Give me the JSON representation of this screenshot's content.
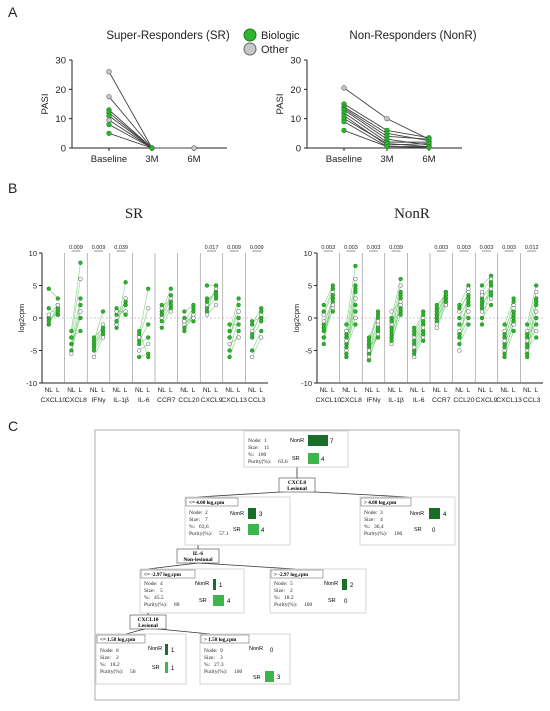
{
  "panels": {
    "a": "A",
    "b": "B",
    "c": "C"
  },
  "colors": {
    "biologic": "#2db52d",
    "biologic_dark": "#1e7a1e",
    "other": "#c8c8c8",
    "tree_dark": "#1b6e2a",
    "tree_light": "#3cb54a",
    "line": "#333333"
  },
  "legend": {
    "biologic": "Biologic",
    "other": "Other"
  },
  "chart_data": [
    {
      "type": "line",
      "title": "Super-Responders (SR)",
      "ylabel": "PASI",
      "categories": [
        "Baseline",
        "3M",
        "6M"
      ],
      "ylim": [
        0,
        30
      ],
      "yticks": [
        0,
        10,
        20,
        30
      ],
      "series": [
        {
          "group": "Other",
          "values": [
            26,
            0,
            0
          ]
        },
        {
          "group": "Other",
          "values": [
            17.5,
            0,
            null
          ]
        },
        {
          "group": "Biologic",
          "values": [
            13,
            0,
            null
          ]
        },
        {
          "group": "Biologic",
          "values": [
            12,
            0,
            null
          ]
        },
        {
          "group": "Biologic",
          "values": [
            11,
            0,
            null
          ]
        },
        {
          "group": "Other",
          "values": [
            9.5,
            0,
            null
          ]
        },
        {
          "group": "Biologic",
          "values": [
            8,
            0,
            null
          ]
        },
        {
          "group": "Biologic",
          "values": [
            5,
            0,
            null
          ]
        }
      ]
    },
    {
      "type": "line",
      "title": "Non-Responders (NonR)",
      "ylabel": "PASI",
      "categories": [
        "Baseline",
        "3M",
        "6M"
      ],
      "ylim": [
        0,
        30
      ],
      "yticks": [
        0,
        10,
        20,
        30
      ],
      "series": [
        {
          "group": "Other",
          "values": [
            20.5,
            10,
            3
          ]
        },
        {
          "group": "Biologic",
          "values": [
            15,
            6,
            3.5
          ]
        },
        {
          "group": "Biologic",
          "values": [
            14,
            5,
            2.5
          ]
        },
        {
          "group": "Biologic",
          "values": [
            13.5,
            4,
            3
          ]
        },
        {
          "group": "Biologic",
          "values": [
            13,
            3,
            1
          ]
        },
        {
          "group": "Biologic",
          "values": [
            12,
            2,
            2
          ]
        },
        {
          "group": "Biologic",
          "values": [
            11,
            1,
            1.5
          ]
        },
        {
          "group": "Biologic",
          "values": [
            10,
            1.5,
            0.5
          ]
        },
        {
          "group": "Biologic",
          "values": [
            9,
            0.5,
            0.5
          ]
        },
        {
          "group": "Biologic",
          "values": [
            6,
            0.5,
            0.2
          ]
        }
      ]
    },
    {
      "type": "scatter",
      "title": "SR",
      "ylabel": "log2cpm",
      "ylim": [
        -10,
        10
      ],
      "yticks": [
        -10,
        -5,
        0,
        5,
        10
      ],
      "subcategories": [
        "NL",
        "L"
      ],
      "genes": [
        "CXCL10",
        "CXCL8",
        "IFNγ",
        "IL-1β",
        "IL-6",
        "CCR7",
        "CCL20",
        "CXCL9",
        "CXCL13",
        "CCL3"
      ],
      "pvalues": [
        "",
        "0.009",
        "0.009",
        "0.039",
        "",
        "",
        "",
        "0.017",
        "0.009",
        "0.009"
      ],
      "groups": [
        {
          "NL": [
            4.5,
            -1,
            -1,
            0,
            0.5,
            1.5,
            -0.5
          ],
          "L": [
            3,
            2,
            1.5,
            0.5,
            2,
            0.5,
            1
          ]
        },
        {
          "NL": [
            -2,
            -3,
            -4,
            -5,
            -5.5,
            -4,
            -3
          ],
          "L": [
            8.5,
            6,
            3,
            2,
            1,
            0,
            -2
          ]
        },
        {
          "NL": [
            -3.5,
            -4,
            -4.5,
            -5,
            -6,
            -3,
            -4
          ],
          "L": [
            1,
            -1,
            -2,
            -2.5,
            -3,
            -1.5,
            -2
          ]
        },
        {
          "NL": [
            -1.5,
            -1,
            0.5,
            -0.5,
            1,
            1.5,
            -0.5
          ],
          "L": [
            5.5,
            3,
            2.5,
            2,
            1,
            0.5,
            2
          ]
        },
        {
          "NL": [
            -2.5,
            -3,
            -3.5,
            -4,
            -5,
            -6,
            -2
          ],
          "L": [
            4.5,
            1.5,
            -1,
            -3,
            -4,
            -5.5,
            -6
          ]
        },
        {
          "NL": [
            1,
            0,
            -0.5,
            -1.5,
            1.5,
            0.5,
            2
          ],
          "L": [
            4.5,
            3,
            2,
            1.5,
            1,
            3.5,
            2.5
          ]
        },
        {
          "NL": [
            -0.5,
            -1,
            -1.5,
            0,
            -0.5,
            -2,
            1
          ],
          "L": [
            1.5,
            0.5,
            0,
            -0.5,
            0,
            1,
            2
          ]
        },
        {
          "NL": [
            1,
            2,
            3,
            1.5,
            0.5,
            2.5,
            5
          ],
          "L": [
            5,
            4.5,
            3.5,
            3,
            2,
            4,
            5
          ]
        },
        {
          "NL": [
            -2,
            -3,
            -5,
            -6,
            -4,
            -1,
            -3
          ],
          "L": [
            3,
            1,
            0,
            -2,
            -3,
            -1,
            2
          ]
        },
        {
          "NL": [
            -1,
            -2,
            -3,
            -5,
            -6,
            -0.5,
            -2.5
          ],
          "L": [
            1.5,
            0.5,
            -0.5,
            -2,
            -3,
            0,
            1
          ]
        }
      ]
    },
    {
      "type": "scatter",
      "title": "NonR",
      "ylabel": "log2cpm",
      "ylim": [
        -10,
        10
      ],
      "yticks": [
        -10,
        -5,
        0,
        5,
        10
      ],
      "subcategories": [
        "NL",
        "L"
      ],
      "genes": [
        "CXCL10",
        "CXCL8",
        "IFNγ",
        "IL-1β",
        "IL-6",
        "CCR7",
        "CCL20",
        "CXCL9",
        "CXCL13",
        "CCL3"
      ],
      "pvalues": [
        "0.003",
        "0.003",
        "0.003",
        "0.039",
        "",
        "0.003",
        "0.003",
        "0.003",
        "0.003",
        "0.012"
      ],
      "groups": [
        {
          "NL": [
            2,
            0.5,
            -1,
            -2,
            -3,
            -4,
            1,
            -0.5,
            -1.5,
            -3
          ],
          "L": [
            5,
            4,
            3,
            2.5,
            1.5,
            3.5,
            4.5,
            2,
            1,
            3
          ]
        },
        {
          "NL": [
            -1,
            -2,
            -3,
            -4,
            -5,
            -6,
            -2.5,
            -3.5,
            -4.5,
            -5.5
          ],
          "L": [
            8,
            6,
            5,
            4,
            3,
            2,
            1,
            0,
            -1,
            4.5
          ]
        },
        {
          "NL": [
            -3,
            -4,
            -5,
            -5.5,
            -6,
            -4.5,
            -3.5,
            -5,
            -4,
            -6.5
          ],
          "L": [
            0,
            -1,
            -1.5,
            -2,
            -2.5,
            -3,
            1,
            -0.5,
            0.5,
            -2
          ]
        },
        {
          "NL": [
            0,
            -1,
            -2,
            -3,
            -4,
            -0.5,
            -1.5,
            1,
            -2.5,
            -3.5
          ],
          "L": [
            6,
            5,
            4,
            3,
            2,
            1,
            3.5,
            2.5,
            1.5,
            0.5
          ]
        },
        {
          "NL": [
            -2,
            -3,
            -4,
            -5,
            -6,
            -2.5,
            -3.5,
            -4.5,
            -5.5,
            -1.5
          ],
          "L": [
            1,
            0,
            -1,
            -2,
            -3,
            0.5,
            -0.5,
            -1.5,
            -2.5,
            -3.5
          ]
        },
        {
          "NL": [
            1.5,
            0.5,
            0,
            -0.5,
            -1,
            1,
            0.5,
            -1.5,
            2,
            0
          ],
          "L": [
            4,
            3.5,
            3,
            2.5,
            2,
            3,
            4,
            2,
            3.5,
            2.5
          ]
        },
        {
          "NL": [
            2,
            1,
            0,
            -1,
            -2,
            -3,
            -4,
            -5,
            1.5,
            -2.5
          ],
          "L": [
            5,
            4,
            3,
            2,
            1,
            0,
            -1,
            4.5,
            3.5,
            2.5
          ]
        },
        {
          "NL": [
            5,
            4,
            3,
            2,
            1,
            0,
            -1,
            3.5,
            2.5,
            1.5
          ],
          "L": [
            6.5,
            6,
            5,
            4,
            3,
            2,
            5.5,
            4.5,
            3.5,
            5
          ]
        },
        {
          "NL": [
            -1,
            -2,
            -3,
            -4,
            -5,
            -6,
            -2.5,
            -3.5,
            -4.5,
            -5.5
          ],
          "L": [
            3,
            2,
            1,
            0,
            -1,
            -2,
            2.5,
            1.5,
            0.5,
            -0.5
          ]
        },
        {
          "NL": [
            -1,
            -2,
            -3,
            -4,
            -5,
            -6,
            -2.5,
            -3.5,
            -4.5,
            -5.5
          ],
          "L": [
            5,
            4,
            3,
            2,
            1,
            0,
            -1,
            -2,
            -3,
            2.5
          ]
        }
      ]
    }
  ],
  "tree": {
    "labels": {
      "node": "Node:",
      "size": "Size:",
      "pct": "%:",
      "purity": "Purity(%):",
      "nonr": "NonR",
      "sr": "SR"
    },
    "nodes": [
      {
        "node": "1",
        "size": "11",
        "pct": "100",
        "purity": "63.6",
        "nonr": 7,
        "sr": 4
      },
      {
        "node": "2",
        "size": "7",
        "pct": "63,6",
        "purity": "57.1",
        "nonr": 3,
        "sr": 4
      },
      {
        "node": "3",
        "size": "4",
        "pct": "36,4",
        "purity": "100",
        "nonr": 4,
        "sr": 0
      },
      {
        "node": "4",
        "size": "5",
        "pct": "45.5",
        "purity": "80",
        "nonr": 1,
        "sr": 4
      },
      {
        "node": "5",
        "size": "2",
        "pct": "18.2",
        "purity": "100",
        "nonr": 2,
        "sr": 0
      },
      {
        "node": "8",
        "size": "2",
        "pct": "18.2",
        "purity": "50",
        "nonr": 1,
        "sr": 1
      },
      {
        "node": "9",
        "size": "3",
        "pct": "27.3",
        "purity": "100",
        "nonr": 0,
        "sr": 3
      }
    ],
    "splits": [
      {
        "var": "CXCL8",
        "sub": "Lesional"
      },
      {
        "var": "IL-6",
        "sub": "Non-lesional"
      },
      {
        "var": "CXCL10",
        "sub": "Lesional"
      }
    ],
    "edges": [
      "<= 4.00 log₂cpm",
      "> 4.00 log₂cpm",
      "<= -2.97 log₂cpm",
      "> -2.97 log₂cpm",
      "<= 1.58 log₂cpm",
      "> 1.58 log₂cpm"
    ]
  }
}
